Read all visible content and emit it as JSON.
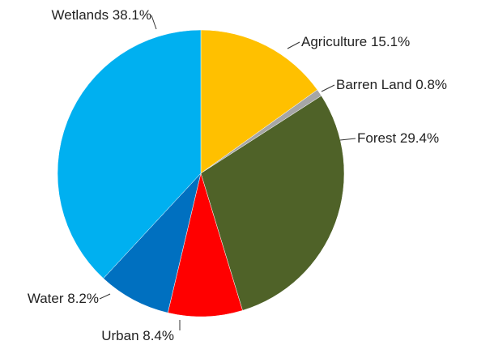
{
  "chart_data": {
    "type": "pie",
    "title": "",
    "start": "top",
    "direction": "clockwise",
    "legend": "none",
    "slices": [
      {
        "label": "Agriculture",
        "value": 15.1,
        "text": "Agriculture 15.1%",
        "color": "#FFC000"
      },
      {
        "label": "Barren Land",
        "value": 0.8,
        "text": "Barren Land 0.8%",
        "color": "#A6A6A6"
      },
      {
        "label": "Forest",
        "value": 29.4,
        "text": "Forest 29.4%",
        "color": "#4F6228"
      },
      {
        "label": "Urban",
        "value": 8.4,
        "text": "Urban 8.4%",
        "color": "#FF0000"
      },
      {
        "label": "Water",
        "value": 8.2,
        "text": "Water 8.2%",
        "color": "#0070C0"
      },
      {
        "label": "Wetlands",
        "value": 38.1,
        "text": "Wetlands 38.1%",
        "color": "#00B0F0"
      }
    ]
  }
}
